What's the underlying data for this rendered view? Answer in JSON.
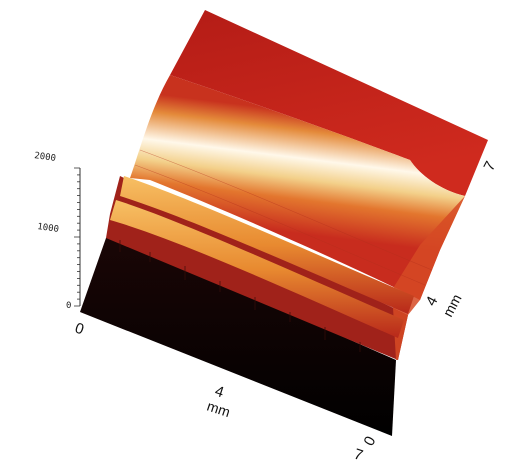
{
  "chart_data": {
    "type": "surface",
    "title": "",
    "z_axis": {
      "ticks": [
        "0",
        "1000",
        "2000"
      ],
      "range": [
        0,
        2000
      ]
    },
    "x_axis": {
      "label": "mm",
      "ticks": [
        "0",
        "4",
        "7"
      ],
      "range": [
        0,
        7
      ]
    },
    "y_axis": {
      "label": "mm",
      "ticks": [
        "0",
        "4",
        "7"
      ],
      "range": [
        0,
        7
      ]
    },
    "colors": {
      "low": "#000000",
      "mid": "#c8321e",
      "high": "#ffffff",
      "plateau": "#c31e19"
    }
  }
}
